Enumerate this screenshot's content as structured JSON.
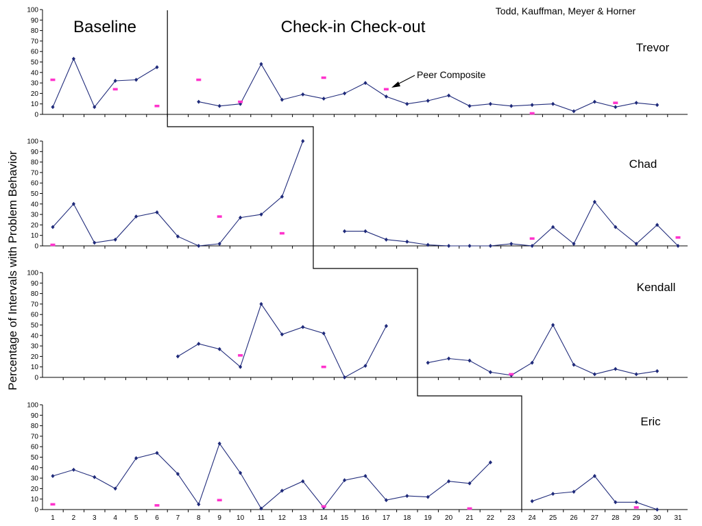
{
  "colors": {
    "series": "#1f2a7a",
    "peer": "#ff33cc",
    "axis": "#000000"
  },
  "chart_data": {
    "type": "line",
    "credit": "Todd, Kauffman, Meyer & Horner",
    "ylabel": "Percentage of Intervals with Problem Behavior",
    "phase_labels": [
      "Baseline",
      "Check-in Check-out"
    ],
    "annotation": "Peer Composite",
    "x_ticks": [
      1,
      2,
      3,
      4,
      5,
      6,
      7,
      8,
      9,
      10,
      11,
      12,
      13,
      14,
      15,
      16,
      17,
      18,
      19,
      20,
      21,
      22,
      23,
      24,
      25,
      26,
      27,
      28,
      29,
      30,
      31
    ],
    "y_ticks": [
      0,
      10,
      20,
      30,
      40,
      50,
      60,
      70,
      80,
      90,
      100
    ],
    "ylim": [
      0,
      100
    ],
    "xlim": [
      1,
      31
    ],
    "panels": [
      {
        "name": "Trevor",
        "series": [
          {
            "name": "",
            "points": [
              [
                1,
                7
              ],
              [
                2,
                53
              ],
              [
                3,
                7
              ],
              [
                4,
                32
              ],
              [
                5,
                33
              ],
              [
                6,
                45
              ]
            ]
          },
          {
            "name": "",
            "points": [
              [
                8,
                12
              ],
              [
                9,
                8
              ],
              [
                10,
                10
              ],
              [
                11,
                48
              ],
              [
                12,
                14
              ],
              [
                13,
                19
              ],
              [
                14,
                15
              ],
              [
                15,
                20
              ],
              [
                16,
                30
              ],
              [
                17,
                17
              ],
              [
                18,
                10
              ],
              [
                19,
                13
              ],
              [
                20,
                18
              ],
              [
                21,
                8
              ],
              [
                22,
                10
              ],
              [
                23,
                8
              ],
              [
                24,
                9
              ],
              [
                25,
                10
              ],
              [
                26,
                3
              ],
              [
                27,
                12
              ],
              [
                28,
                7
              ],
              [
                29,
                11
              ],
              [
                30,
                9
              ]
            ]
          }
        ],
        "peer": [
          [
            1,
            33
          ],
          [
            4,
            24
          ],
          [
            6,
            8
          ],
          [
            8,
            33
          ],
          [
            10,
            12
          ],
          [
            14,
            35
          ],
          [
            17,
            24
          ],
          [
            24,
            1
          ],
          [
            28,
            11
          ]
        ],
        "phase_change_after": 6.5
      },
      {
        "name": "Chad",
        "series": [
          {
            "name": "",
            "points": [
              [
                1,
                18
              ],
              [
                2,
                40
              ],
              [
                3,
                3
              ],
              [
                4,
                6
              ],
              [
                5,
                28
              ],
              [
                6,
                32
              ],
              [
                7,
                9
              ],
              [
                8,
                0
              ],
              [
                9,
                2
              ],
              [
                10,
                27
              ],
              [
                11,
                30
              ],
              [
                12,
                47
              ],
              [
                13,
                100
              ]
            ]
          },
          {
            "name": "",
            "points": [
              [
                15,
                14
              ],
              [
                16,
                14
              ],
              [
                17,
                6
              ],
              [
                18,
                4
              ],
              [
                19,
                1
              ],
              [
                20,
                0
              ],
              [
                21,
                0
              ],
              [
                22,
                0
              ],
              [
                23,
                2
              ],
              [
                24,
                0
              ],
              [
                25,
                18
              ],
              [
                26,
                2
              ],
              [
                27,
                42
              ],
              [
                28,
                18
              ],
              [
                29,
                2
              ],
              [
                30,
                20
              ],
              [
                31,
                0
              ]
            ]
          }
        ],
        "peer": [
          [
            1,
            1
          ],
          [
            9,
            28
          ],
          [
            12,
            12
          ],
          [
            24,
            7
          ],
          [
            31,
            8
          ]
        ],
        "phase_change_after": 13.5
      },
      {
        "name": "Kendall",
        "series": [
          {
            "name": "",
            "points": [
              [
                7,
                20
              ],
              [
                8,
                32
              ],
              [
                9,
                27
              ],
              [
                10,
                10
              ],
              [
                11,
                70
              ],
              [
                12,
                41
              ],
              [
                13,
                48
              ],
              [
                14,
                42
              ],
              [
                15,
                0
              ],
              [
                16,
                11
              ],
              [
                17,
                49
              ]
            ]
          },
          {
            "name": "",
            "points": [
              [
                19,
                14
              ],
              [
                20,
                18
              ],
              [
                21,
                16
              ],
              [
                22,
                5
              ],
              [
                23,
                2
              ],
              [
                24,
                14
              ],
              [
                25,
                50
              ],
              [
                26,
                12
              ],
              [
                27,
                3
              ],
              [
                28,
                8
              ],
              [
                29,
                3
              ],
              [
                30,
                6
              ]
            ]
          }
        ],
        "peer": [
          [
            10,
            21
          ],
          [
            14,
            10
          ],
          [
            23,
            3
          ]
        ],
        "phase_change_after": 18.5
      },
      {
        "name": "Eric",
        "series": [
          {
            "name": "",
            "points": [
              [
                1,
                32
              ],
              [
                2,
                38
              ],
              [
                3,
                31
              ],
              [
                4,
                20
              ],
              [
                5,
                49
              ],
              [
                6,
                54
              ],
              [
                7,
                34
              ],
              [
                8,
                5
              ],
              [
                9,
                63
              ],
              [
                10,
                35
              ],
              [
                11,
                1
              ],
              [
                12,
                18
              ],
              [
                13,
                27
              ],
              [
                14,
                2
              ],
              [
                15,
                28
              ],
              [
                16,
                32
              ],
              [
                17,
                9
              ],
              [
                18,
                13
              ],
              [
                19,
                12
              ],
              [
                20,
                27
              ],
              [
                21,
                25
              ],
              [
                22,
                45
              ]
            ]
          },
          {
            "name": "",
            "points": [
              [
                24,
                8
              ],
              [
                25,
                15
              ],
              [
                26,
                17
              ],
              [
                27,
                32
              ],
              [
                28,
                7
              ],
              [
                29,
                7
              ],
              [
                30,
                0
              ]
            ]
          }
        ],
        "peer": [
          [
            1,
            5
          ],
          [
            6,
            4
          ],
          [
            9,
            9
          ],
          [
            14,
            3
          ],
          [
            21,
            1
          ],
          [
            29,
            2
          ]
        ],
        "phase_change_after": 23.5
      }
    ]
  }
}
